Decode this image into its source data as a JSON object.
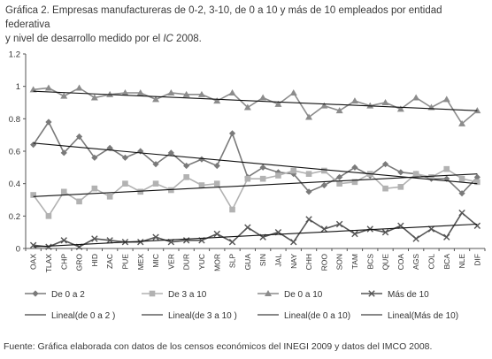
{
  "title_line1": "Gráfica 2. Empresas manufactureras de 0-2, 3-10, de 0 a 10 y más de 10 empleados por entidad federativa",
  "title_line2_a": "y nivel de desarrollo medido por el ",
  "title_line2_ic": "IC",
  "title_line2_b": " 2008.",
  "source": "Fuente: Gráfica elaborada con datos de los censos económicos del INEGI 2009 y datos del IMCO 2008.",
  "chart_data": {
    "type": "line",
    "ylim": [
      0,
      1.2
    ],
    "yticks": [
      "0",
      "0.2",
      "0.4",
      "0.6",
      "0.8",
      "1",
      "1.2"
    ],
    "categories": [
      "OAX",
      "TLAX",
      "CHP",
      "GRO",
      "HID",
      "ZAC",
      "PUE",
      "MEX",
      "MIC",
      "VER",
      "DUR",
      "YUC",
      "MOR",
      "SLP",
      "GUA",
      "SIN",
      "JAL",
      "NAY",
      "CHH",
      "ROO",
      "SON",
      "TAM",
      "BCS",
      "QUE",
      "COA",
      "AGS",
      "COL",
      "BCA",
      "NLE",
      "DIF"
    ],
    "series": [
      {
        "name": "De 0 a 2",
        "color": "#7a7a7a",
        "marker": "diamond",
        "values": [
          0.64,
          0.78,
          0.59,
          0.69,
          0.56,
          0.62,
          0.56,
          0.6,
          0.52,
          0.59,
          0.51,
          0.55,
          0.51,
          0.71,
          0.44,
          0.5,
          0.47,
          0.46,
          0.35,
          0.39,
          0.44,
          0.5,
          0.45,
          0.52,
          0.47,
          0.46,
          0.43,
          0.43,
          0.34,
          0.44
        ]
      },
      {
        "name": "De 3 a 10",
        "color": "#b2b2b2",
        "marker": "square",
        "values": [
          0.33,
          0.2,
          0.35,
          0.29,
          0.37,
          0.32,
          0.4,
          0.35,
          0.4,
          0.36,
          0.44,
          0.39,
          0.4,
          0.24,
          0.43,
          0.43,
          0.45,
          0.48,
          0.46,
          0.48,
          0.4,
          0.41,
          0.46,
          0.37,
          0.38,
          0.46,
          0.44,
          0.49,
          0.43,
          0.41
        ]
      },
      {
        "name": "De 0 a 10",
        "color": "#8c8c8c",
        "marker": "triangle",
        "values": [
          0.98,
          0.99,
          0.94,
          0.99,
          0.93,
          0.95,
          0.96,
          0.96,
          0.92,
          0.96,
          0.95,
          0.95,
          0.91,
          0.96,
          0.87,
          0.93,
          0.89,
          0.96,
          0.81,
          0.88,
          0.85,
          0.91,
          0.88,
          0.9,
          0.86,
          0.93,
          0.87,
          0.92,
          0.77,
          0.85
        ]
      },
      {
        "name": "Más de 10",
        "color": "#555555",
        "marker": "x",
        "values": [
          0.02,
          0.01,
          0.05,
          0.01,
          0.06,
          0.05,
          0.04,
          0.04,
          0.07,
          0.04,
          0.05,
          0.05,
          0.09,
          0.04,
          0.13,
          0.07,
          0.1,
          0.04,
          0.18,
          0.12,
          0.15,
          0.09,
          0.12,
          0.1,
          0.14,
          0.06,
          0.12,
          0.07,
          0.22,
          0.14
        ]
      }
    ],
    "trendlines": [
      {
        "name": "Lineal(de 0 a 2 )",
        "start": 0.65,
        "end": 0.4
      },
      {
        "name": "Lineal(de 3 a 10 )",
        "start": 0.32,
        "end": 0.46
      },
      {
        "name": "Lineal(de 0 a 10)",
        "start": 0.97,
        "end": 0.85
      },
      {
        "name": "Lineal(Más de 10)",
        "start": 0.01,
        "end": 0.15
      }
    ]
  }
}
